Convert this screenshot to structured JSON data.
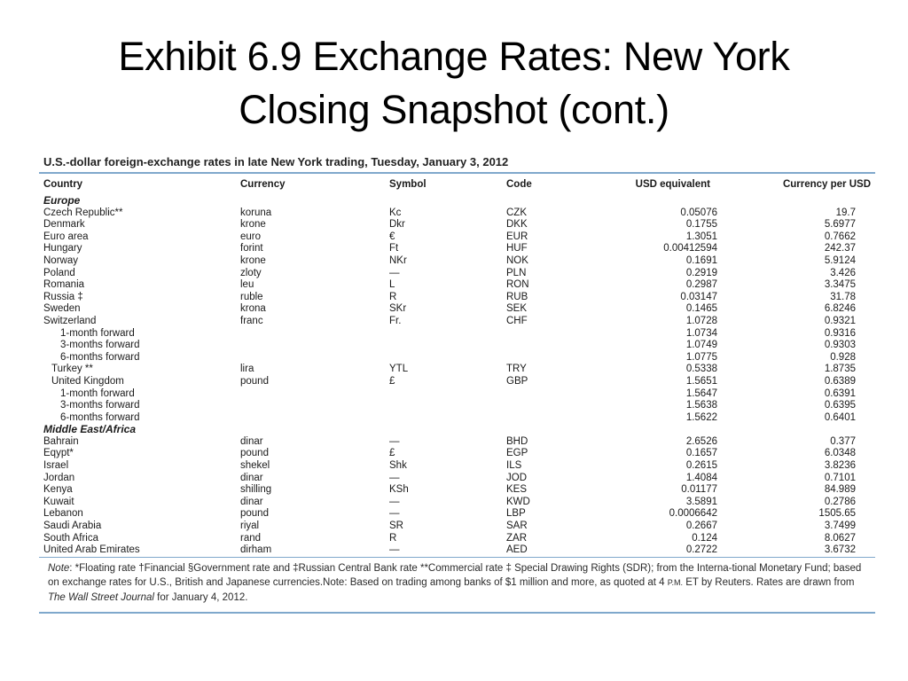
{
  "slide": {
    "title_line1": "Exhibit 6.9  Exchange Rates: New York",
    "title_line2": "Closing Snapshot (cont.)"
  },
  "table": {
    "caption": "U.S.-dollar foreign-exchange rates in late New York trading, Tuesday, January 3, 2012",
    "headers": {
      "country": "Country",
      "currency": "Currency",
      "symbol": "Symbol",
      "code": "Code",
      "usd_equivalent": "USD equivalent",
      "currency_per_usd": "Currency per USD"
    },
    "sections": [
      {
        "name": "Europe",
        "rows": [
          {
            "country": "Czech Republic**",
            "currency": "koruna",
            "symbol": "Kc",
            "code": "CZK",
            "usd": "0.05076",
            "per": "19.7",
            "indent": 0
          },
          {
            "country": "Denmark",
            "currency": "krone",
            "symbol": "Dkr",
            "code": "DKK",
            "usd": "0.1755",
            "per": "5.6977",
            "indent": 0
          },
          {
            "country": "Euro area",
            "currency": "euro",
            "symbol": "€",
            "code": "EUR",
            "usd": "1.3051",
            "per": "0.7662",
            "indent": 0
          },
          {
            "country": "Hungary",
            "currency": "forint",
            "symbol": "Ft",
            "code": "HUF",
            "usd": "0.00412594",
            "per": "242.37",
            "indent": 0
          },
          {
            "country": "Norway",
            "currency": "krone",
            "symbol": "NKr",
            "code": "NOK",
            "usd": "0.1691",
            "per": "5.9124",
            "indent": 0
          },
          {
            "country": "Poland",
            "currency": "zloty",
            "symbol": "—",
            "code": "PLN",
            "usd": "0.2919",
            "per": "3.426",
            "indent": 0
          },
          {
            "country": "Romania",
            "currency": "leu",
            "symbol": "L",
            "code": "RON",
            "usd": "0.2987",
            "per": "3.3475",
            "indent": 0
          },
          {
            "country": "Russia ‡",
            "currency": "ruble",
            "symbol": "R",
            "code": "RUB",
            "usd": "0.03147",
            "per": "31.78",
            "indent": 0
          },
          {
            "country": "Sweden",
            "currency": "krona",
            "symbol": "SKr",
            "code": "SEK",
            "usd": "0.1465",
            "per": "6.8246",
            "indent": 0
          },
          {
            "country": "Switzerland",
            "currency": "franc",
            "symbol": "Fr.",
            "code": "CHF",
            "usd": "1.0728",
            "per": "0.9321",
            "indent": 0
          },
          {
            "country": "1-month forward",
            "currency": "",
            "symbol": "",
            "code": "",
            "usd": "1.0734",
            "per": "0.9316",
            "indent": 2
          },
          {
            "country": "3-months forward",
            "currency": "",
            "symbol": "",
            "code": "",
            "usd": "1.0749",
            "per": "0.9303",
            "indent": 2
          },
          {
            "country": "6-months forward",
            "currency": "",
            "symbol": "",
            "code": "",
            "usd": "1.0775",
            "per": "0.928",
            "indent": 2
          },
          {
            "country": "Turkey **",
            "currency": "lira",
            "symbol": "YTL",
            "code": "TRY",
            "usd": "0.5338",
            "per": "1.8735",
            "indent": 1
          },
          {
            "country": "United Kingdom",
            "currency": "pound",
            "symbol": "£",
            "code": "GBP",
            "usd": "1.5651",
            "per": "0.6389",
            "indent": 1
          },
          {
            "country": "1-month forward",
            "currency": "",
            "symbol": "",
            "code": "",
            "usd": "1.5647",
            "per": "0.6391",
            "indent": 2
          },
          {
            "country": "3-months forward",
            "currency": "",
            "symbol": "",
            "code": "",
            "usd": "1.5638",
            "per": "0.6395",
            "indent": 2
          },
          {
            "country": "6-months forward",
            "currency": "",
            "symbol": "",
            "code": "",
            "usd": "1.5622",
            "per": "0.6401",
            "indent": 2
          }
        ]
      },
      {
        "name": "Middle East/Africa",
        "rows": [
          {
            "country": "Bahrain",
            "currency": "dinar",
            "symbol": "—",
            "code": "BHD",
            "usd": "2.6526",
            "per": "0.377",
            "indent": 0
          },
          {
            "country": "Eqypt*",
            "currency": "pound",
            "symbol": "£",
            "code": "EGP",
            "usd": "0.1657",
            "per": "6.0348",
            "indent": 0
          },
          {
            "country": "Israel",
            "currency": "shekel",
            "symbol": "Shk",
            "code": "ILS",
            "usd": "0.2615",
            "per": "3.8236",
            "indent": 0
          },
          {
            "country": "Jordan",
            "currency": "dinar",
            "symbol": "—",
            "code": "JOD",
            "usd": "1.4084",
            "per": "0.7101",
            "indent": 0
          },
          {
            "country": "Kenya",
            "currency": "shilling",
            "symbol": "KSh",
            "code": "KES",
            "usd": "0.01177",
            "per": "84.989",
            "indent": 0
          },
          {
            "country": "Kuwait",
            "currency": "dinar",
            "symbol": "—",
            "code": "KWD",
            "usd": "3.5891",
            "per": "0.2786",
            "indent": 0
          },
          {
            "country": "Lebanon",
            "currency": "pound",
            "symbol": "—",
            "code": "LBP",
            "usd": "0.0006642",
            "per": "1505.65",
            "indent": 0
          },
          {
            "country": "Saudi Arabia",
            "currency": "riyal",
            "symbol": "SR",
            "code": "SAR",
            "usd": "0.2667",
            "per": "3.7499",
            "indent": 0
          },
          {
            "country": "South Africa",
            "currency": "rand",
            "symbol": "R",
            "code": "ZAR",
            "usd": "0.124",
            "per": "8.0627",
            "indent": 0
          },
          {
            "country": "United Arab Emirates",
            "currency": "dirham",
            "symbol": "—",
            "code": "AED",
            "usd": "0.2722",
            "per": "3.6732",
            "indent": 0
          }
        ]
      }
    ],
    "note": {
      "label": "Note",
      "text_part1": ": *Floating rate †Financial §Government rate and ‡Russian Central Bank rate **Commercial rate ‡ Special Drawing Rights (SDR); from the Interna-tional Monetary Fund; based on exchange rates for U.S., British and Japanese currencies.Note: Based on trading among banks of $1 million and more, as quoted at 4 ",
      "time_suffix": "P.M.",
      "text_part2": " ET by Reuters. Rates are drawn from ",
      "source": "The Wall Street Journal",
      "text_part3": " for January 4, 2012."
    }
  },
  "colors": {
    "rule": "#7fa8cc",
    "text": "#1a1a1a"
  }
}
